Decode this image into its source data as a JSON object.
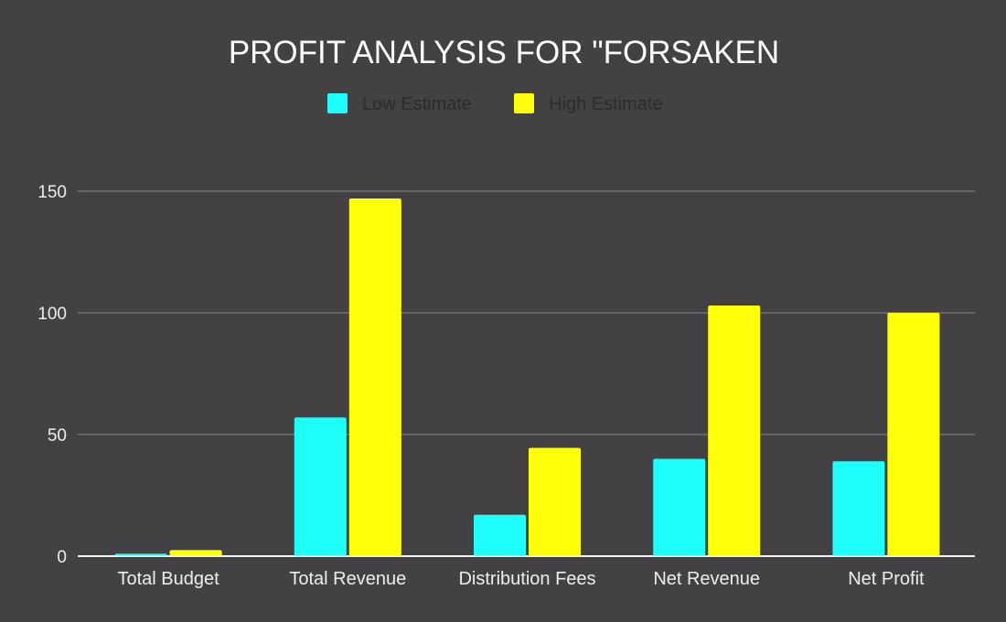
{
  "chart_data": {
    "type": "bar",
    "title": "PROFIT ANALYSIS FOR \"FORSAKEN",
    "categories": [
      "Total Budget",
      "Total Revenue",
      "Distribution Fees",
      "Net Revenue",
      "Net Profit"
    ],
    "series": [
      {
        "name": "Low Estimate",
        "color": "#1efffb",
        "values": [
          1,
          57,
          17,
          40,
          39
        ]
      },
      {
        "name": "High Estimate",
        "color": "#ffff0a",
        "values": [
          2.5,
          147,
          44.5,
          103,
          100
        ]
      }
    ],
    "yticks": [
      0,
      50,
      100,
      150
    ],
    "ylim": [
      0,
      172
    ],
    "xlabel": "",
    "ylabel": "",
    "grid": true,
    "legend_position": "top"
  },
  "colors": {
    "background": "#434144",
    "title": "#ffffff",
    "legend_text": "#2c2c2c",
    "axis_text": "#eeeeee",
    "gridline": "#8a888b",
    "baseline": "#f2f2f2"
  }
}
